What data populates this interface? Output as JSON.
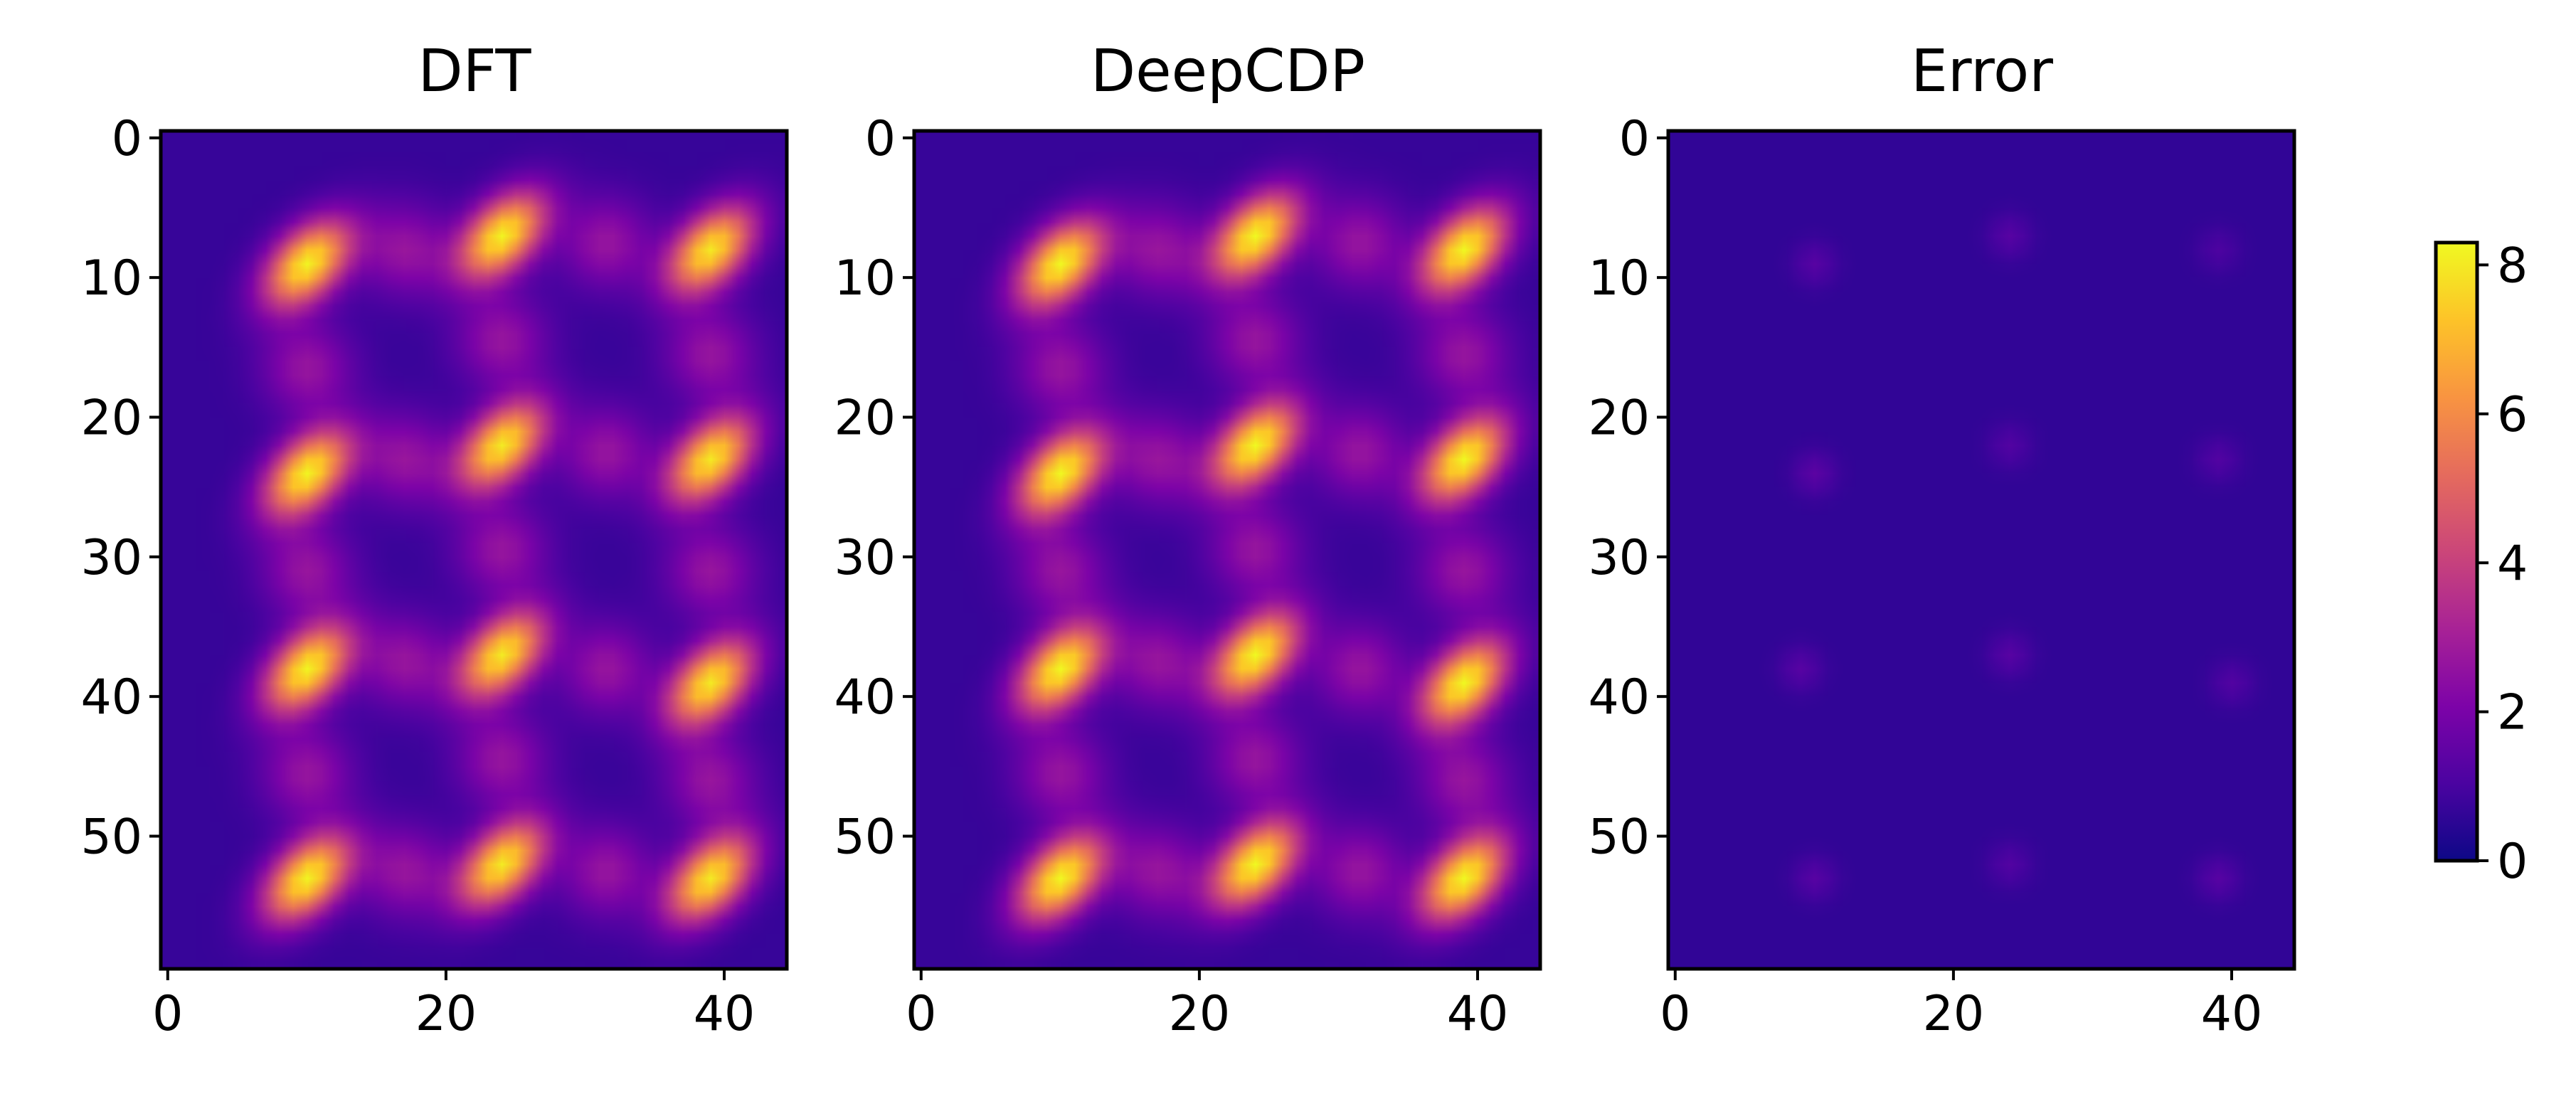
{
  "chart_data": [
    {
      "type": "heatmap",
      "title": "DFT",
      "xlabel": "",
      "ylabel": "",
      "xlim": [
        -0.5,
        44.5
      ],
      "ylim": [
        59.5,
        -0.5
      ],
      "x_ticks": [
        0,
        20,
        40
      ],
      "y_ticks": [
        0,
        10,
        20,
        30,
        40,
        50
      ],
      "grid_shape": [
        60,
        45
      ],
      "colormap": "plasma",
      "peaks": [
        {
          "x": 10,
          "y": 9,
          "value": 8.2
        },
        {
          "x": 24,
          "y": 7,
          "value": 8.2
        },
        {
          "x": 39,
          "y": 8,
          "value": 8.0
        },
        {
          "x": 10,
          "y": 24,
          "value": 8.2
        },
        {
          "x": 24,
          "y": 22,
          "value": 8.0
        },
        {
          "x": 39,
          "y": 23,
          "value": 8.0
        },
        {
          "x": 10,
          "y": 38,
          "value": 8.2
        },
        {
          "x": 24,
          "y": 37,
          "value": 8.0
        },
        {
          "x": 39,
          "y": 39,
          "value": 8.0
        },
        {
          "x": 10,
          "y": 53,
          "value": 8.2
        },
        {
          "x": 24,
          "y": 52,
          "value": 8.0
        },
        {
          "x": 39,
          "y": 53,
          "value": 8.0
        }
      ]
    },
    {
      "type": "heatmap",
      "title": "DeepCDP",
      "xlabel": "",
      "ylabel": "",
      "xlim": [
        -0.5,
        44.5
      ],
      "ylim": [
        59.5,
        -0.5
      ],
      "x_ticks": [
        0,
        20,
        40
      ],
      "y_ticks": [
        0,
        10,
        20,
        30,
        40,
        50
      ],
      "grid_shape": [
        60,
        45
      ],
      "colormap": "plasma",
      "peaks": [
        {
          "x": 10,
          "y": 9,
          "value": 8.3
        },
        {
          "x": 24,
          "y": 7,
          "value": 8.3
        },
        {
          "x": 39,
          "y": 8,
          "value": 8.3
        },
        {
          "x": 10,
          "y": 24,
          "value": 8.3
        },
        {
          "x": 24,
          "y": 22,
          "value": 8.3
        },
        {
          "x": 39,
          "y": 23,
          "value": 8.3
        },
        {
          "x": 10,
          "y": 38,
          "value": 8.3
        },
        {
          "x": 24,
          "y": 37,
          "value": 8.3
        },
        {
          "x": 39,
          "y": 39,
          "value": 8.3
        },
        {
          "x": 10,
          "y": 53,
          "value": 8.3
        },
        {
          "x": 24,
          "y": 52,
          "value": 8.3
        },
        {
          "x": 39,
          "y": 53,
          "value": 8.3
        }
      ]
    },
    {
      "type": "heatmap",
      "title": "Error",
      "xlabel": "",
      "ylabel": "",
      "xlim": [
        -0.5,
        44.5
      ],
      "ylim": [
        59.5,
        -0.5
      ],
      "x_ticks": [
        0,
        20,
        40
      ],
      "y_ticks": [
        0,
        10,
        20,
        30,
        40,
        50
      ],
      "grid_shape": [
        60,
        45
      ],
      "colormap": "plasma",
      "baseline": 0.6,
      "peaks": [
        {
          "x": 10,
          "y": 9,
          "value": 1.3
        },
        {
          "x": 24,
          "y": 7,
          "value": 1.3
        },
        {
          "x": 39,
          "y": 8,
          "value": 1.1
        },
        {
          "x": 10,
          "y": 24,
          "value": 1.4
        },
        {
          "x": 24,
          "y": 22,
          "value": 1.2
        },
        {
          "x": 39,
          "y": 23,
          "value": 1.2
        },
        {
          "x": 9,
          "y": 38,
          "value": 1.3
        },
        {
          "x": 24,
          "y": 37,
          "value": 1.3
        },
        {
          "x": 40,
          "y": 39,
          "value": 1.2
        },
        {
          "x": 10,
          "y": 53,
          "value": 1.3
        },
        {
          "x": 24,
          "y": 52,
          "value": 1.2
        },
        {
          "x": 39,
          "y": 53,
          "value": 1.3
        }
      ]
    }
  ],
  "colorbar": {
    "colormap": "plasma",
    "range": [
      0,
      8.3
    ],
    "ticks": [
      0,
      2,
      4,
      6,
      8
    ]
  }
}
